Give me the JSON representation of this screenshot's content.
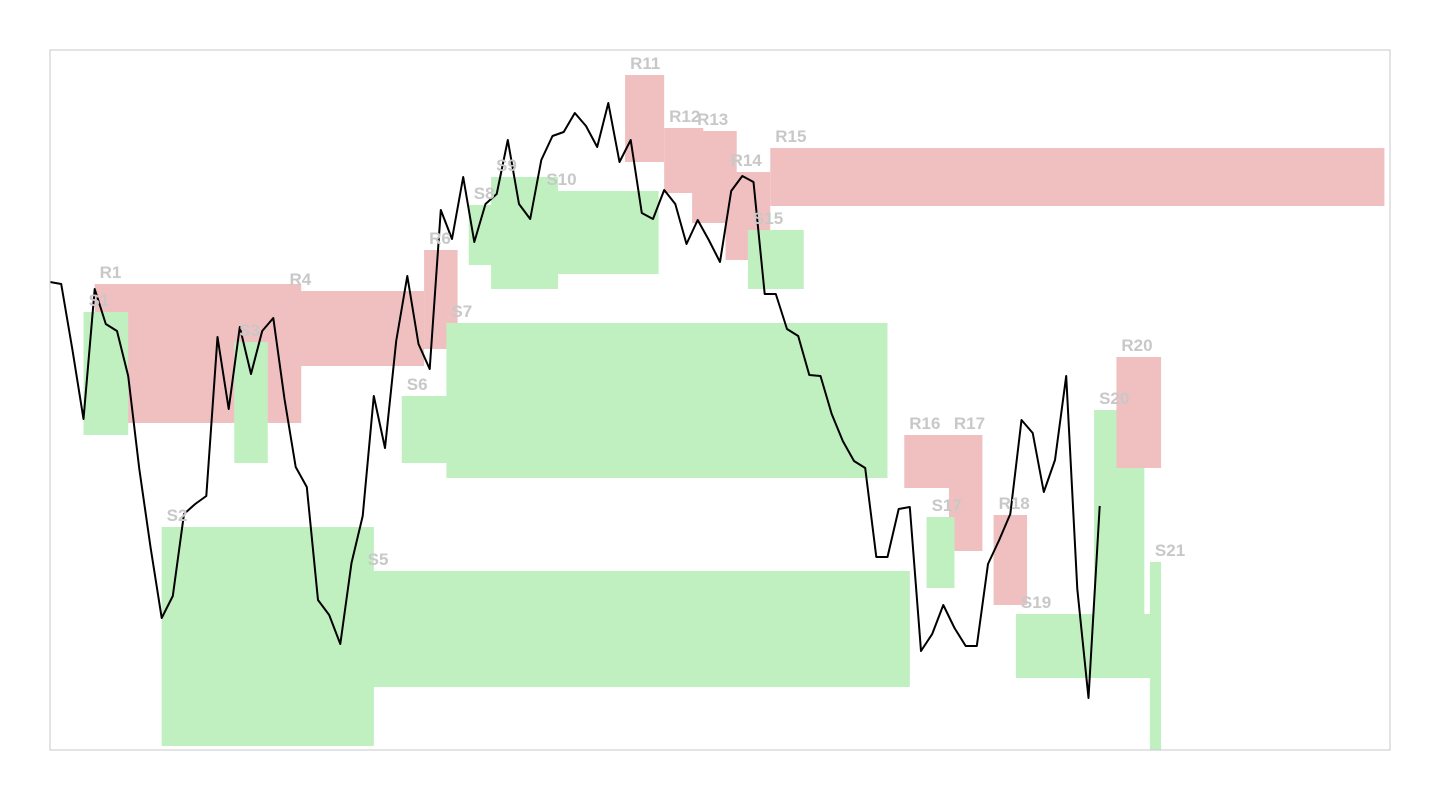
{
  "chart_data": {
    "type": "line",
    "title": "",
    "xlabel": "",
    "ylabel": "",
    "grid": false,
    "legend": "none",
    "xlim": [
      0,
      120
    ],
    "ylim": [
      0,
      700
    ],
    "colors": {
      "resistance": "#f0c0c0",
      "support": "#c0f0c0",
      "line": "#000000",
      "label": "#c8c8c8",
      "frame": "#c8c8c8"
    },
    "series": [
      {
        "values": [
          [
            0,
            468
          ],
          [
            1,
            466
          ],
          [
            2,
            401
          ],
          [
            3,
            331
          ],
          [
            4,
            461
          ],
          [
            5,
            426
          ],
          [
            6,
            419
          ],
          [
            7,
            374
          ],
          [
            8,
            281
          ],
          [
            9,
            203
          ],
          [
            10,
            132
          ],
          [
            11,
            154
          ],
          [
            12,
            236
          ],
          [
            13,
            246
          ],
          [
            14,
            254
          ],
          [
            15,
            413
          ],
          [
            16,
            341
          ],
          [
            17,
            423
          ],
          [
            18,
            376
          ],
          [
            19,
            419
          ],
          [
            20,
            432
          ],
          [
            21,
            351
          ],
          [
            22,
            283
          ],
          [
            23,
            263
          ],
          [
            24,
            150
          ],
          [
            25,
            135
          ],
          [
            26,
            106
          ],
          [
            27,
            187
          ],
          [
            28,
            234
          ],
          [
            29,
            354
          ],
          [
            30,
            302
          ],
          [
            31,
            409
          ],
          [
            32,
            474
          ],
          [
            33,
            406
          ],
          [
            34,
            381
          ],
          [
            35,
            540
          ],
          [
            36,
            511
          ],
          [
            37,
            573
          ],
          [
            38,
            508
          ],
          [
            39,
            546
          ],
          [
            40,
            556
          ],
          [
            41,
            610
          ],
          [
            42,
            546
          ],
          [
            43,
            531
          ],
          [
            44,
            590
          ],
          [
            45,
            614
          ],
          [
            46,
            618
          ],
          [
            47,
            637
          ],
          [
            48,
            624
          ],
          [
            49,
            603
          ],
          [
            50,
            647
          ],
          [
            51,
            588
          ],
          [
            52,
            610
          ],
          [
            53,
            537
          ],
          [
            54,
            531
          ],
          [
            55,
            560
          ],
          [
            56,
            546
          ],
          [
            57,
            506
          ],
          [
            58,
            530
          ],
          [
            59,
            510
          ],
          [
            60,
            488
          ],
          [
            61,
            559
          ],
          [
            62,
            574
          ],
          [
            63,
            568
          ],
          [
            64,
            456
          ],
          [
            65,
            456
          ],
          [
            66,
            421
          ],
          [
            67,
            414
          ],
          [
            68,
            375
          ],
          [
            69,
            374
          ],
          [
            70,
            336
          ],
          [
            71,
            309
          ],
          [
            72,
            289
          ],
          [
            73,
            282
          ],
          [
            74,
            193
          ],
          [
            75,
            193
          ],
          [
            76,
            241
          ],
          [
            77,
            243
          ],
          [
            78,
            99
          ],
          [
            79,
            116
          ],
          [
            80,
            145
          ],
          [
            81,
            122
          ],
          [
            82,
            104
          ],
          [
            83,
            104
          ],
          [
            84,
            186
          ],
          [
            85,
            210
          ],
          [
            86,
            236
          ],
          [
            87,
            330
          ],
          [
            88,
            317
          ],
          [
            89,
            258
          ],
          [
            90,
            290
          ],
          [
            91,
            374
          ],
          [
            92,
            161
          ],
          [
            93,
            52
          ],
          [
            94,
            244
          ]
        ]
      }
    ],
    "zones": [
      {
        "kind": "resistance",
        "label": "R1",
        "x0": 4,
        "x1": 22.5,
        "y0": 327,
        "y1": 466
      },
      {
        "kind": "support",
        "label": "S1",
        "x0": 3,
        "x1": 7,
        "y0": 315,
        "y1": 438
      },
      {
        "kind": "support",
        "label": "S2",
        "x0": 10,
        "x1": 29,
        "y0": 4,
        "y1": 223
      },
      {
        "kind": "support",
        "label": "S3",
        "x0": 16.5,
        "x1": 19.5,
        "y0": 287,
        "y1": 408
      },
      {
        "kind": "resistance",
        "label": "R4",
        "x0": 21,
        "x1": 33.5,
        "y0": 384,
        "y1": 459
      },
      {
        "kind": "support",
        "label": "S5",
        "x0": 28,
        "x1": 77,
        "y0": 63,
        "y1": 179
      },
      {
        "kind": "support",
        "label": "S6",
        "x0": 31.5,
        "x1": 36,
        "y0": 287,
        "y1": 354
      },
      {
        "kind": "resistance",
        "label": "R6",
        "x0": 33.5,
        "x1": 36.5,
        "y0": 401,
        "y1": 500
      },
      {
        "kind": "support",
        "label": "S7",
        "x0": 35.5,
        "x1": 75,
        "y0": 272,
        "y1": 427
      },
      {
        "kind": "support",
        "label": "S8",
        "x0": 37.5,
        "x1": 43.5,
        "y0": 485,
        "y1": 545
      },
      {
        "kind": "support",
        "label": "S9",
        "x0": 39.5,
        "x1": 45.5,
        "y0": 461,
        "y1": 573
      },
      {
        "kind": "support",
        "label": "S10",
        "x0": 44,
        "x1": 54.5,
        "y0": 476,
        "y1": 559
      },
      {
        "kind": "resistance",
        "label": "R11",
        "x0": 51.5,
        "x1": 55,
        "y0": 588,
        "y1": 675
      },
      {
        "kind": "resistance",
        "label": "R12",
        "x0": 55,
        "x1": 58.5,
        "y0": 557,
        "y1": 622
      },
      {
        "kind": "resistance",
        "label": "R13",
        "x0": 57.5,
        "x1": 61.5,
        "y0": 527,
        "y1": 619
      },
      {
        "kind": "resistance",
        "label": "R14",
        "x0": 60.5,
        "x1": 64.5,
        "y0": 490,
        "y1": 578
      },
      {
        "kind": "resistance",
        "label": "R15",
        "x0": 64.5,
        "x1": 119.5,
        "y0": 544,
        "y1": 602
      },
      {
        "kind": "support",
        "label": "S15",
        "x0": 62.5,
        "x1": 67.5,
        "y0": 461,
        "y1": 520
      },
      {
        "kind": "resistance",
        "label": "R16",
        "x0": 76.5,
        "x1": 82.5,
        "y0": 262,
        "y1": 315
      },
      {
        "kind": "resistance",
        "label": "R17",
        "x0": 80.5,
        "x1": 83.5,
        "y0": 199,
        "y1": 315
      },
      {
        "kind": "support",
        "label": "S17",
        "x0": 78.5,
        "x1": 81,
        "y0": 162,
        "y1": 233
      },
      {
        "kind": "resistance",
        "label": "R18",
        "x0": 84.5,
        "x1": 87.5,
        "y0": 145,
        "y1": 235
      },
      {
        "kind": "support",
        "label": "S19",
        "x0": 86.5,
        "x1": 99,
        "y0": 72,
        "y1": 136
      },
      {
        "kind": "support",
        "label": "S20",
        "x0": 93.5,
        "x1": 98,
        "y0": 119,
        "y1": 340
      },
      {
        "kind": "resistance",
        "label": "R20",
        "x0": 95.5,
        "x1": 99.5,
        "y0": 282,
        "y1": 393
      },
      {
        "kind": "support",
        "label": "S21",
        "x0": 98.5,
        "x1": 99.5,
        "y0": 0,
        "y1": 188
      }
    ]
  }
}
